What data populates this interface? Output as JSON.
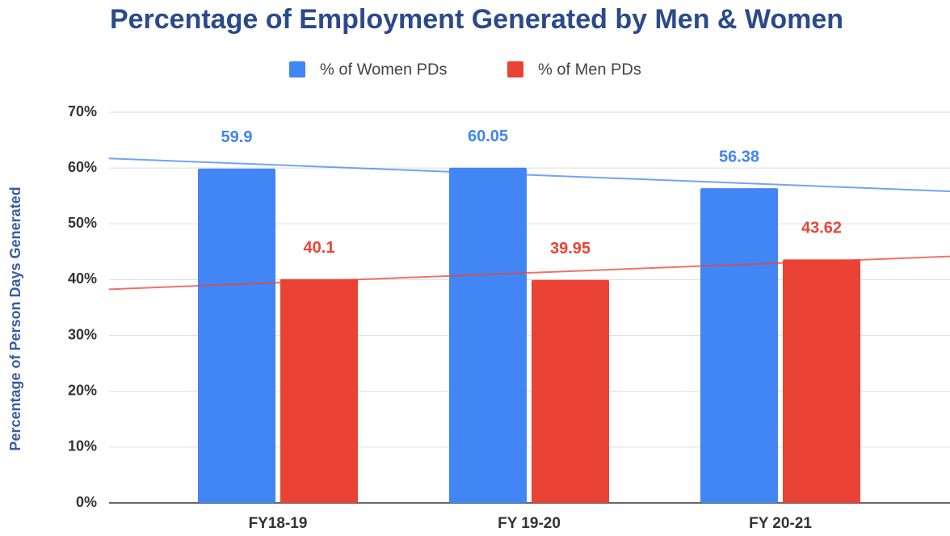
{
  "chart_data": {
    "type": "bar",
    "title": "Percentage of Employment Generated by Men & Women",
    "y_axis_label": "Percentage of Person Days Generated",
    "categories": [
      "FY18-19",
      "FY 19-20",
      "FY 20-21"
    ],
    "series": [
      {
        "name": "% of Women PDs",
        "color": "#4285f4",
        "values": [
          59.9,
          60.05,
          56.38
        ]
      },
      {
        "name": "% of Men PDs",
        "color": "#ea4335",
        "values": [
          40.1,
          39.95,
          43.62
        ]
      }
    ],
    "ylim": [
      0,
      70
    ],
    "yticks": [
      {
        "value": 0,
        "label": "0%"
      },
      {
        "value": 10,
        "label": "10%"
      },
      {
        "value": 20,
        "label": "20%"
      },
      {
        "value": 30,
        "label": "30%"
      },
      {
        "value": 40,
        "label": "40%"
      },
      {
        "value": 50,
        "label": "50%"
      },
      {
        "value": 60,
        "label": "60%"
      },
      {
        "value": 70,
        "label": "70%"
      }
    ],
    "grid": true,
    "trendline": true,
    "legend": "top"
  }
}
